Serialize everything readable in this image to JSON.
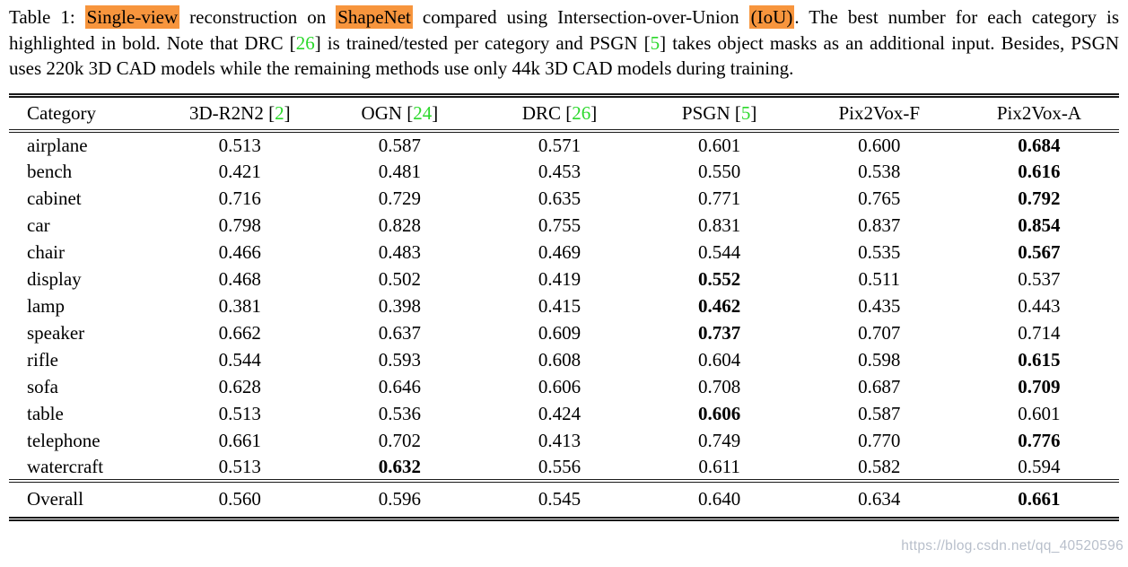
{
  "colors": {
    "hl": "#F7953D",
    "cite": "#2BD82B",
    "rule": "#1a1a1a",
    "wm": "#B8BFCB",
    "text": "#000000",
    "bg": "#FFFFFF"
  },
  "caption": {
    "segments": [
      {
        "text": "Table 1: ",
        "style": "plain"
      },
      {
        "text": "Single-view",
        "style": "highlight"
      },
      {
        "text": " reconstruction on ",
        "style": "plain"
      },
      {
        "text": "ShapeNet",
        "style": "highlight"
      },
      {
        "text": " compared using Intersection-over-Union ",
        "style": "plain"
      },
      {
        "text": "(IoU)",
        "style": "highlight"
      },
      {
        "text": ". The best number for each category is highlighted in bold. Note that DRC [",
        "style": "plain"
      },
      {
        "text": "26",
        "style": "cite"
      },
      {
        "text": "] is trained/tested per category and PSGN [",
        "style": "plain"
      },
      {
        "text": "5",
        "style": "cite"
      },
      {
        "text": "] takes object masks as an additional input. Besides, PSGN uses 220k 3D CAD models while the remaining methods use only 44k 3D CAD models during training.",
        "style": "plain"
      }
    ]
  },
  "table": {
    "columns": [
      {
        "label": "Category",
        "cite": null
      },
      {
        "label": "3D-R2N2",
        "cite": "2"
      },
      {
        "label": "OGN",
        "cite": "24"
      },
      {
        "label": "DRC",
        "cite": "26"
      },
      {
        "label": "PSGN",
        "cite": "5"
      },
      {
        "label": "Pix2Vox-F",
        "cite": null
      },
      {
        "label": "Pix2Vox-A",
        "cite": null
      }
    ],
    "rows": [
      {
        "category": "airplane",
        "values": [
          "0.513",
          "0.587",
          "0.571",
          "0.601",
          "0.600",
          "0.684"
        ],
        "bold_index": 5
      },
      {
        "category": "bench",
        "values": [
          "0.421",
          "0.481",
          "0.453",
          "0.550",
          "0.538",
          "0.616"
        ],
        "bold_index": 5
      },
      {
        "category": "cabinet",
        "values": [
          "0.716",
          "0.729",
          "0.635",
          "0.771",
          "0.765",
          "0.792"
        ],
        "bold_index": 5
      },
      {
        "category": "car",
        "values": [
          "0.798",
          "0.828",
          "0.755",
          "0.831",
          "0.837",
          "0.854"
        ],
        "bold_index": 5
      },
      {
        "category": "chair",
        "values": [
          "0.466",
          "0.483",
          "0.469",
          "0.544",
          "0.535",
          "0.567"
        ],
        "bold_index": 5
      },
      {
        "category": "display",
        "values": [
          "0.468",
          "0.502",
          "0.419",
          "0.552",
          "0.511",
          "0.537"
        ],
        "bold_index": 3
      },
      {
        "category": "lamp",
        "values": [
          "0.381",
          "0.398",
          "0.415",
          "0.462",
          "0.435",
          "0.443"
        ],
        "bold_index": 3
      },
      {
        "category": "speaker",
        "values": [
          "0.662",
          "0.637",
          "0.609",
          "0.737",
          "0.707",
          "0.714"
        ],
        "bold_index": 3
      },
      {
        "category": "rifle",
        "values": [
          "0.544",
          "0.593",
          "0.608",
          "0.604",
          "0.598",
          "0.615"
        ],
        "bold_index": 5
      },
      {
        "category": "sofa",
        "values": [
          "0.628",
          "0.646",
          "0.606",
          "0.708",
          "0.687",
          "0.709"
        ],
        "bold_index": 5
      },
      {
        "category": "table",
        "values": [
          "0.513",
          "0.536",
          "0.424",
          "0.606",
          "0.587",
          "0.601"
        ],
        "bold_index": 3
      },
      {
        "category": "telephone",
        "values": [
          "0.661",
          "0.702",
          "0.413",
          "0.749",
          "0.770",
          "0.776"
        ],
        "bold_index": 5
      },
      {
        "category": "watercraft",
        "values": [
          "0.513",
          "0.632",
          "0.556",
          "0.611",
          "0.582",
          "0.594"
        ],
        "bold_index": 1
      }
    ],
    "overall": {
      "category": "Overall",
      "values": [
        "0.560",
        "0.596",
        "0.545",
        "0.640",
        "0.634",
        "0.661"
      ],
      "bold_index": 5
    }
  },
  "watermark": {
    "text": "https://blog.csdn.net/qq_40520596"
  }
}
